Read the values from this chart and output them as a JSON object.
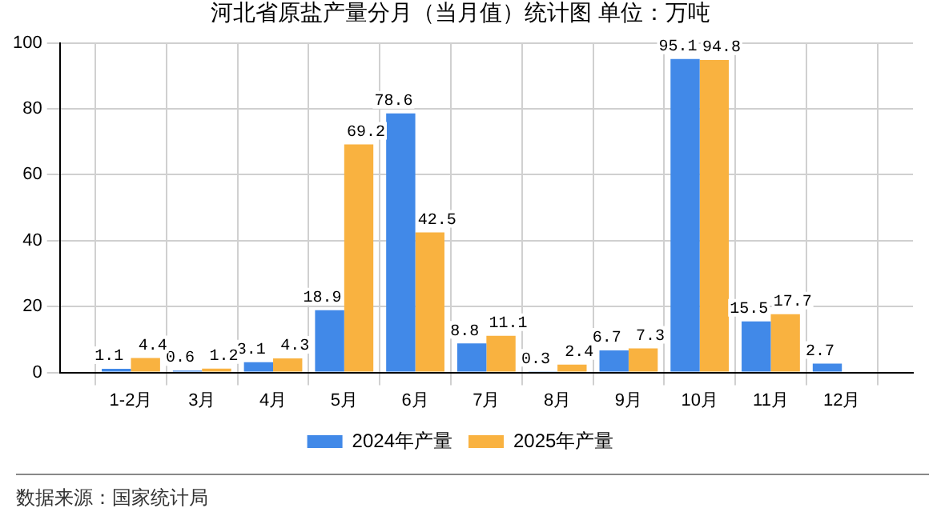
{
  "chart_data": {
    "type": "bar",
    "title": "河北省原盐产量分月（当月值）统计图 单位：万吨",
    "categories": [
      null,
      "1-2月",
      "3月",
      "4月",
      "5月",
      "6月",
      "7月",
      "8月",
      "9月",
      "10月",
      "11月",
      "12月",
      null
    ],
    "series": [
      {
        "name": "2024年产量",
        "color": "#4189e8",
        "values": [
          null,
          1.1,
          0.6,
          3.1,
          18.9,
          78.6,
          8.8,
          0.3,
          6.7,
          95.1,
          15.5,
          2.7,
          null
        ]
      },
      {
        "name": "2025年产量",
        "color": "#f9b240",
        "values": [
          null,
          4.4,
          1.2,
          4.3,
          69.2,
          42.5,
          11.1,
          2.4,
          7.3,
          94.8,
          17.7,
          null,
          null
        ]
      }
    ],
    "ylim": [
      0,
      100
    ],
    "yticks": [
      0,
      20,
      40,
      60,
      80,
      100
    ],
    "grid": true,
    "legend": "bottom",
    "data_labels": true,
    "annotations": [
      "数据来源：国家统计局"
    ]
  }
}
